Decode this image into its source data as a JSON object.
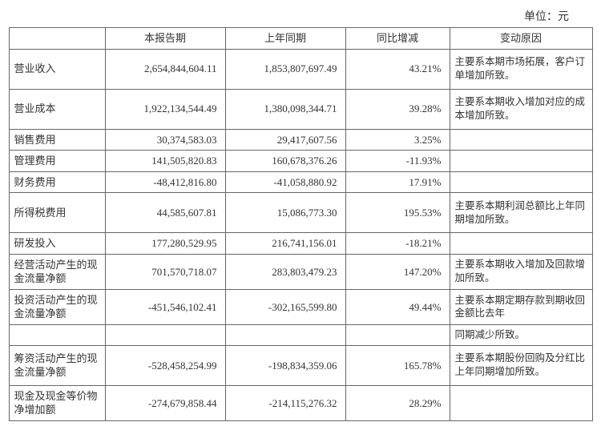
{
  "unit_label": "单位：元",
  "headers": {
    "blank": "",
    "current": "本报告期",
    "previous": "上年同期",
    "change": "同比增减",
    "reason": "变动原因"
  },
  "rows": [
    {
      "label": "营业收入",
      "current": "2,654,844,604.11",
      "previous": "1,853,807,697.49",
      "pct": "43.21%",
      "reason": "主要系本期市场拓展，客户订单增加所致。",
      "cls": "tall"
    },
    {
      "label": "营业成本",
      "current": "1,922,134,544.49",
      "previous": "1,380,098,344.71",
      "pct": "39.28%",
      "reason": "主要系本期收入增加对应的成本增加所致。",
      "cls": "tall"
    },
    {
      "label": "销售费用",
      "current": "30,374,583.03",
      "previous": "29,417,607.56",
      "pct": "3.25%",
      "reason": "",
      "cls": "short"
    },
    {
      "label": "管理费用",
      "current": "141,505,820.83",
      "previous": "160,678,376.26",
      "pct": "-11.93%",
      "reason": "",
      "cls": "short"
    },
    {
      "label": "财务费用",
      "current": "-48,412,816.80",
      "previous": "-41,058,880.92",
      "pct": "17.91%",
      "reason": "",
      "cls": "short"
    },
    {
      "label": "所得税费用",
      "current": "44,585,607.81",
      "previous": "15,086,773.30",
      "pct": "195.53%",
      "reason": "主要系本期利润总额比上年同期增加所致。",
      "cls": "tall"
    },
    {
      "label": "研发投入",
      "current": "177,280,529.95",
      "previous": "216,741,156.01",
      "pct": "-18.21%",
      "reason": "",
      "cls": "short"
    },
    {
      "label": "经营活动产生的现金流量净额",
      "current": "701,570,718.07",
      "previous": "283,803,479.23",
      "pct": "147.20%",
      "reason": "主要系本期收入增加及回款增加所致。",
      "cls": "med",
      "multi": true
    },
    {
      "label": "投资活动产生的现金流量净额",
      "current": "-451,546,102.41",
      "previous": "-302,165,599.80",
      "pct": "49.44%",
      "reason": "主要系本期定期存款到期收回金额比去年",
      "cls": "med",
      "multi": true
    },
    {
      "label": "",
      "current": "",
      "previous": "",
      "pct": "",
      "reason": "同期减少所致。",
      "cls": "short"
    },
    {
      "label": "筹资活动产生的现金流量净额",
      "current": "-528,458,254.99",
      "previous": "-198,834,359.06",
      "pct": "165.78%",
      "reason": "主要系本期股份回购及分红比上年同期增加所致。",
      "cls": "tall",
      "multi": true
    },
    {
      "label": "现金及现金等价物净增加额",
      "current": "-274,679,858.44",
      "previous": "-214,115,276.32",
      "pct": "28.29%",
      "reason": "",
      "cls": "med",
      "multi": true
    }
  ]
}
